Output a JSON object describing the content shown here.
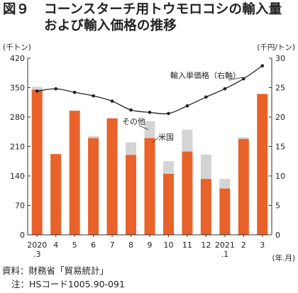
{
  "title": {
    "figure_label": "図９",
    "line1": "コーンスターチ用トウモロコシの輸入量",
    "line2": "および輸入価格の推移"
  },
  "footer": {
    "source": "資料：財務省「貿易統計」",
    "note": "注：HSコード1005.90-091"
  },
  "chart_data": {
    "type": "bar",
    "categories": [
      "2020\n.3",
      "4",
      "5",
      "6",
      "7",
      "8",
      "9",
      "10",
      "11",
      "12",
      "2021\n.1",
      "2",
      "3"
    ],
    "x_unit_label": "(年.月)",
    "left_axis": {
      "unit_label": "(千トン)",
      "ylim": [
        0,
        420
      ],
      "ticks": [
        0,
        70,
        140,
        210,
        280,
        350,
        420
      ]
    },
    "right_axis": {
      "unit_label": "(千円/トン)",
      "ylim": [
        0,
        30
      ],
      "ticks": [
        0,
        5,
        10,
        15,
        20,
        25,
        30
      ]
    },
    "series": [
      {
        "name": "米国",
        "kind": "bar",
        "axis": "left",
        "color": "#e8622a",
        "values": [
          345,
          192,
          295,
          230,
          277,
          190,
          230,
          145,
          198,
          133,
          110,
          228,
          335
        ]
      },
      {
        "name": "その他",
        "kind": "stacked-bar",
        "axis": "left",
        "color": "#d4d4d4",
        "values": [
          7,
          0,
          0,
          5,
          0,
          30,
          40,
          30,
          52,
          58,
          23,
          4,
          0
        ]
      },
      {
        "name": "輸入単価格（右軸）",
        "kind": "line",
        "axis": "right",
        "color": "#222222",
        "values": [
          24.4,
          24.8,
          24.2,
          23.6,
          22.7,
          21.2,
          20.8,
          20.6,
          21.9,
          23.4,
          24.8,
          26.5,
          28.7
        ]
      }
    ],
    "grid": false,
    "legend": "inline labels"
  }
}
